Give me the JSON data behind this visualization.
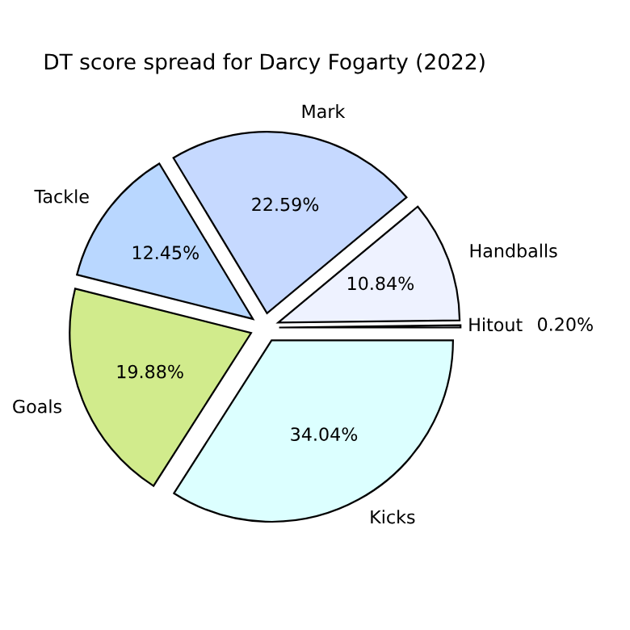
{
  "chart_data": {
    "type": "pie",
    "title": "DT score spread for Darcy Fogarty (2022)",
    "categories": [
      "Hitout",
      "Handballs",
      "Mark",
      "Tackle",
      "Goals",
      "Kicks"
    ],
    "values": [
      0.2,
      10.84,
      22.59,
      12.45,
      19.88,
      34.04
    ],
    "value_labels": [
      "0.20%",
      "10.84%",
      "22.59%",
      "12.45%",
      "19.88%",
      "34.04%"
    ],
    "colors": [
      "#eef2ff",
      "#eef2ff",
      "#c6d9ff",
      "#b9d7ff",
      "#d1eb8c",
      "#dcffff"
    ],
    "legend": false
  }
}
